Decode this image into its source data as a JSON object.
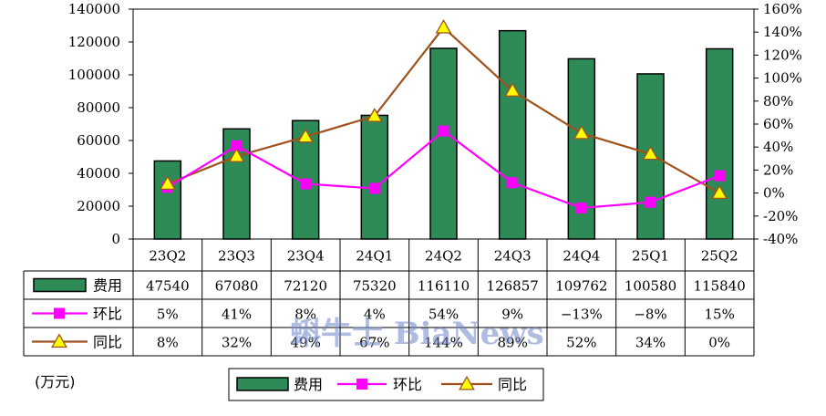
{
  "chart_data": {
    "type": "bar",
    "categories": [
      "23Q2",
      "23Q3",
      "23Q4",
      "24Q1",
      "24Q2",
      "24Q3",
      "24Q4",
      "25Q1",
      "25Q2"
    ],
    "series": [
      {
        "name": "费用",
        "type": "bar",
        "axis": "left",
        "values": [
          47540,
          67080,
          72120,
          75320,
          116110,
          126857,
          109762,
          100580,
          115840
        ],
        "labels": [
          "47540",
          "67080",
          "72120",
          "75320",
          "116110",
          "126857",
          "109762",
          "100580",
          "115840"
        ],
        "color": "#2e8b57"
      },
      {
        "name": "环比",
        "type": "line",
        "axis": "right",
        "marker": "square",
        "values": [
          5,
          41,
          8,
          4,
          54,
          9,
          -13,
          -8,
          15
        ],
        "labels": [
          "5%",
          "41%",
          "8%",
          "4%",
          "54%",
          "9%",
          "−13%",
          "−8%",
          "15%"
        ],
        "color": "#ff00ff"
      },
      {
        "name": "同比",
        "type": "line",
        "axis": "right",
        "marker": "triangle",
        "values": [
          8,
          32,
          49,
          67,
          144,
          89,
          52,
          34,
          0
        ],
        "labels": [
          "8%",
          "32%",
          "49%",
          "67%",
          "144%",
          "89%",
          "52%",
          "34%",
          "0%"
        ],
        "color": "#a0521e",
        "marker_fill": "#ffff00"
      }
    ],
    "left_axis": {
      "range": [
        0,
        140000
      ],
      "ticks": [
        "0",
        "20000",
        "40000",
        "60000",
        "80000",
        "100000",
        "120000",
        "140000"
      ]
    },
    "right_axis": {
      "range": [
        -40,
        160
      ],
      "ticks": [
        "-40%",
        "-20%",
        "0%",
        "20%",
        "40%",
        "60%",
        "80%",
        "100%",
        "120%",
        "140%",
        "160%"
      ]
    },
    "unit": "(万元)",
    "legend": [
      "费用",
      "环比",
      "同比"
    ],
    "legend_position": "bottom",
    "grid": false,
    "watermark": "蝌牛士 BiaNews"
  }
}
